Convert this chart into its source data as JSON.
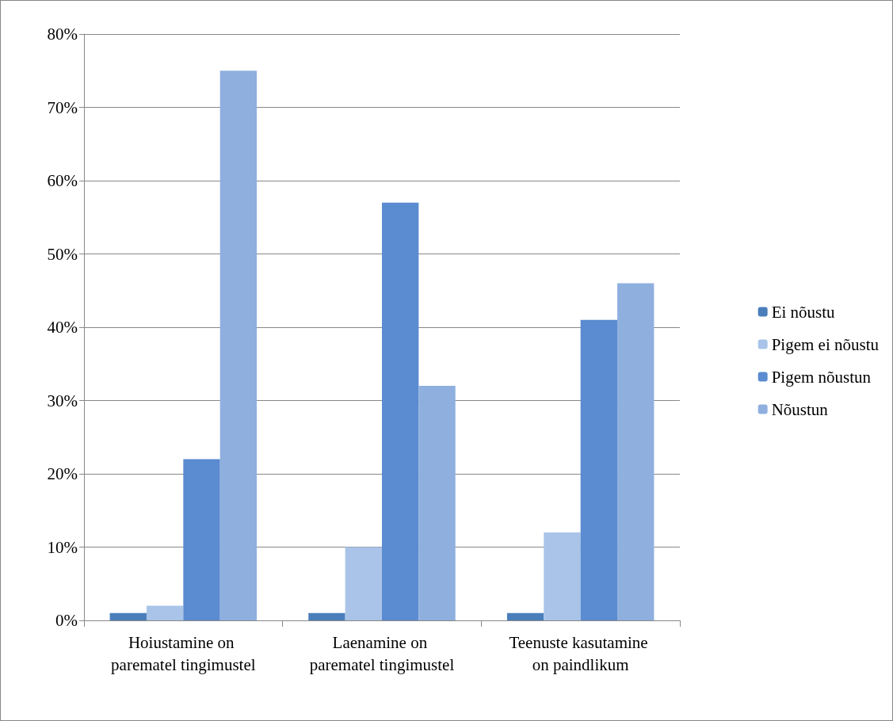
{
  "chart_data": {
    "type": "bar",
    "categories": [
      "Hoiustamine on parematel tingimustel",
      "Laenamine on parematel tingimustel",
      "Teenuste kasutamine on paindlikum"
    ],
    "series": [
      {
        "name": "Ei nõustu",
        "color": "#4a7ebb",
        "values": [
          1,
          1,
          1
        ]
      },
      {
        "name": "Pigem ei nõustu",
        "color": "#a9c4e8",
        "values": [
          2,
          10,
          12
        ]
      },
      {
        "name": "Pigem nõustun",
        "color": "#5b8bd0",
        "values": [
          22,
          57,
          41
        ]
      },
      {
        "name": "Nõustun",
        "color": "#8fb0df",
        "values": [
          75,
          32,
          46
        ]
      }
    ],
    "ylim": [
      0,
      80
    ],
    "yticks": [
      {
        "value": 0,
        "label": "0%"
      },
      {
        "value": 10,
        "label": "10%"
      },
      {
        "value": 20,
        "label": "20%"
      },
      {
        "value": 30,
        "label": "30%"
      },
      {
        "value": 40,
        "label": "40%"
      },
      {
        "value": 50,
        "label": "50%"
      },
      {
        "value": 60,
        "label": "60%"
      },
      {
        "value": 70,
        "label": "70%"
      },
      {
        "value": 80,
        "label": "80%"
      }
    ],
    "grid": "y",
    "legend": "right"
  }
}
